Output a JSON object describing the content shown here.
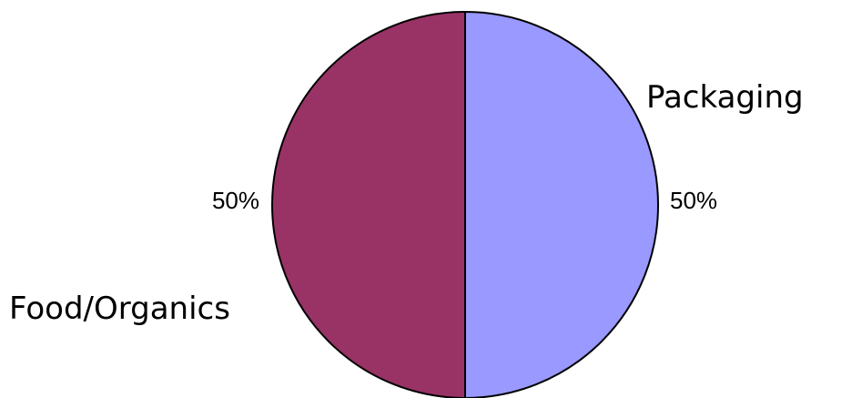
{
  "chart_data": {
    "type": "pie",
    "slices": [
      {
        "label": "Packaging",
        "value": 50,
        "percent_label": "50%",
        "color": "#9999ff"
      },
      {
        "label": "Food/Organics",
        "value": 50,
        "percent_label": "50%",
        "color": "#993366"
      }
    ],
    "outline_color": "#000000"
  }
}
